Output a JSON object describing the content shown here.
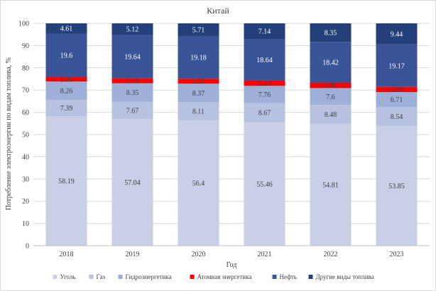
{
  "chart_data": {
    "type": "bar",
    "stacked": true,
    "title": "Китай",
    "xlabel": "Год",
    "ylabel": "Потребление электроэнергии по видам топлива, %",
    "ylim": [
      0,
      100
    ],
    "yticks": [
      0,
      10,
      20,
      30,
      40,
      50,
      60,
      70,
      80,
      90,
      100
    ],
    "grid": true,
    "legend_position": "bottom",
    "categories": [
      "2018",
      "2019",
      "2020",
      "2021",
      "2022",
      "2023"
    ],
    "series": [
      {
        "name": "Уголь",
        "color": "#c9cfe6",
        "label_color": "#404040",
        "values": [
          58.19,
          57.04,
          56.4,
          55.46,
          54.81,
          53.85
        ]
      },
      {
        "name": "Газ",
        "color": "#b7c1e0",
        "label_color": "#404040",
        "values": [
          7.39,
          7.67,
          8.11,
          8.67,
          8.48,
          8.54
        ]
      },
      {
        "name": "Гидроэнергетика",
        "color": "#9fb0d8",
        "label_color": "#404040",
        "values": [
          8.26,
          8.35,
          8.37,
          7.76,
          7.6,
          6.71
        ]
      },
      {
        "name": "Атомная энергетика",
        "color": "#ff0000",
        "label_color": "#404040",
        "values": [
          1.95,
          2.19,
          2.22,
          2.33,
          2.35,
          2.28
        ]
      },
      {
        "name": "Нефть",
        "color": "#3a5597",
        "label_color": "#ffffff",
        "values": [
          19.6,
          19.64,
          19.18,
          18.64,
          18.42,
          19.17
        ]
      },
      {
        "name": "Другие виды топлива",
        "color": "#23407a",
        "label_color": "#ffffff",
        "values": [
          4.61,
          5.12,
          5.71,
          7.14,
          8.35,
          9.44
        ]
      }
    ]
  }
}
